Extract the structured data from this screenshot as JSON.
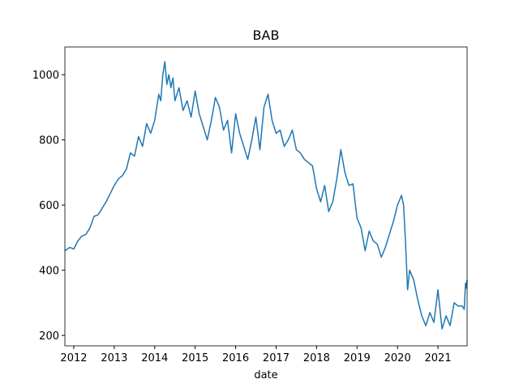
{
  "chart_data": {
    "type": "line",
    "title": "BAB",
    "xlabel": "date",
    "x": [
      2011.78,
      2011.9,
      2012.0,
      2012.1,
      2012.2,
      2012.3,
      2012.4,
      2012.5,
      2012.6,
      2012.7,
      2012.8,
      2012.9,
      2013.0,
      2013.1,
      2013.2,
      2013.3,
      2013.4,
      2013.5,
      2013.6,
      2013.7,
      2013.8,
      2013.9,
      2014.0,
      2014.1,
      2014.15,
      2014.2,
      2014.25,
      2014.3,
      2014.35,
      2014.4,
      2014.45,
      2014.5,
      2014.6,
      2014.7,
      2014.8,
      2014.9,
      2015.0,
      2015.1,
      2015.2,
      2015.3,
      2015.4,
      2015.5,
      2015.6,
      2015.7,
      2015.8,
      2015.9,
      2016.0,
      2016.1,
      2016.2,
      2016.3,
      2016.4,
      2016.5,
      2016.6,
      2016.7,
      2016.8,
      2016.9,
      2017.0,
      2017.1,
      2017.2,
      2017.3,
      2017.4,
      2017.5,
      2017.6,
      2017.7,
      2017.8,
      2017.9,
      2018.0,
      2018.1,
      2018.2,
      2018.3,
      2018.4,
      2018.5,
      2018.6,
      2018.7,
      2018.8,
      2018.9,
      2019.0,
      2019.1,
      2019.2,
      2019.3,
      2019.4,
      2019.5,
      2019.6,
      2019.7,
      2019.8,
      2019.9,
      2020.0,
      2020.1,
      2020.15,
      2020.2,
      2020.25,
      2020.3,
      2020.4,
      2020.5,
      2020.6,
      2020.7,
      2020.8,
      2020.9,
      2021.0,
      2021.05,
      2021.1,
      2021.2,
      2021.3,
      2021.4,
      2021.5,
      2021.6,
      2021.65,
      2021.68,
      2021.7,
      2021.72
    ],
    "series": [
      {
        "name": "BAB",
        "color": "#1f77b4",
        "values": [
          460,
          470,
          465,
          490,
          505,
          510,
          530,
          565,
          570,
          590,
          610,
          635,
          660,
          680,
          690,
          710,
          760,
          750,
          810,
          780,
          850,
          820,
          860,
          940,
          920,
          1000,
          1040,
          970,
          1000,
          960,
          990,
          920,
          960,
          890,
          920,
          870,
          950,
          880,
          840,
          800,
          860,
          930,
          900,
          830,
          860,
          760,
          880,
          820,
          780,
          740,
          800,
          870,
          770,
          900,
          940,
          860,
          820,
          830,
          780,
          800,
          830,
          770,
          760,
          740,
          730,
          720,
          650,
          610,
          660,
          580,
          610,
          680,
          770,
          700,
          660,
          665,
          560,
          530,
          460,
          520,
          490,
          480,
          440,
          470,
          510,
          550,
          600,
          630,
          600,
          480,
          340,
          400,
          370,
          310,
          260,
          230,
          270,
          240,
          340,
          280,
          220,
          260,
          230,
          300,
          290,
          290,
          280,
          360,
          345,
          370
        ]
      }
    ],
    "xlim": [
      2011.78,
      2021.72
    ],
    "ylim": [
      168,
      1085
    ],
    "xticks": [
      2012,
      2013,
      2014,
      2015,
      2016,
      2017,
      2018,
      2019,
      2020,
      2021
    ],
    "yticks": [
      200,
      400,
      600,
      800,
      1000
    ]
  }
}
